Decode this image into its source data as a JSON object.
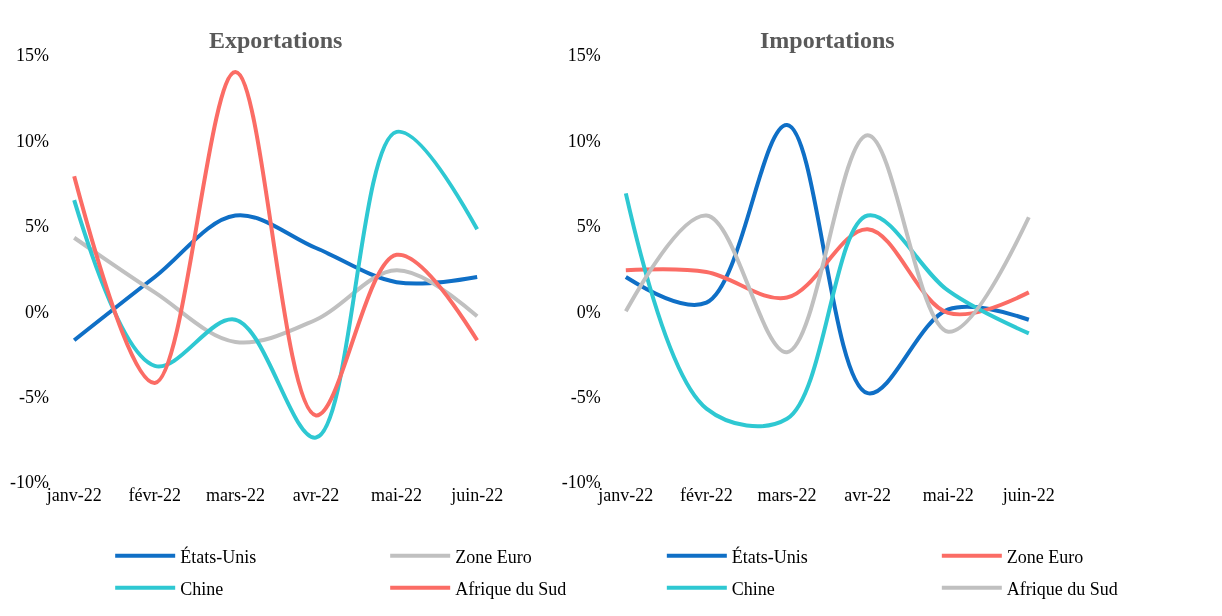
{
  "chart_data": [
    {
      "type": "line",
      "title": "Exportations",
      "categories": [
        "janv-22",
        "févr-22",
        "mars-22",
        "avr-22",
        "mai-22",
        "juin-22"
      ],
      "series": [
        {
          "name": "États-Unis",
          "color": "#0f6fc6",
          "values": [
            -1.7,
            2.0,
            5.6,
            3.7,
            1.7,
            2.0
          ]
        },
        {
          "name": "Zone Euro",
          "color": "#c0c0c0",
          "values": [
            4.3,
            1.1,
            -1.8,
            -0.5,
            2.4,
            -0.3
          ]
        },
        {
          "name": "Chine",
          "color": "#2ec8d2",
          "values": [
            6.5,
            -3.2,
            -0.5,
            -7.4,
            10.5,
            4.8
          ]
        },
        {
          "name": "Afrique du Sud",
          "color": "#fb6c65",
          "values": [
            7.9,
            -4.2,
            14.0,
            -6.1,
            3.3,
            -1.7
          ]
        }
      ],
      "ylim": [
        -10,
        15
      ],
      "yticks": [
        {
          "value": -10,
          "label": "-10%"
        },
        {
          "value": -5,
          "label": "-5%"
        },
        {
          "value": 0,
          "label": "0%"
        },
        {
          "value": 5,
          "label": "5%"
        },
        {
          "value": 10,
          "label": "10%"
        },
        {
          "value": 15,
          "label": "15%"
        }
      ],
      "legend": "bottom",
      "marker": "none",
      "line_style": "solid"
    },
    {
      "type": "line",
      "title": "Importations",
      "categories": [
        "janv-22",
        "févr-22",
        "mars-22",
        "avr-22",
        "mai-22",
        "juin-22"
      ],
      "series": [
        {
          "name": "États-Unis",
          "color": "#0f6fc6",
          "values": [
            2.0,
            0.5,
            10.9,
            -4.8,
            0.1,
            -0.5
          ]
        },
        {
          "name": "Zone Euro",
          "color": "#fb6c65",
          "values": [
            2.4,
            2.3,
            0.8,
            4.8,
            -0.1,
            1.1
          ]
        },
        {
          "name": "Chine",
          "color": "#2ec8d2",
          "values": [
            6.9,
            -5.7,
            -6.3,
            5.6,
            1.2,
            -1.3
          ]
        },
        {
          "name": "Afrique du Sud",
          "color": "#c0c0c0",
          "values": [
            0.0,
            5.6,
            -2.4,
            10.3,
            -1.2,
            5.5
          ]
        }
      ],
      "ylim": [
        -10,
        15
      ],
      "yticks": [
        {
          "value": -10,
          "label": "-10%"
        },
        {
          "value": -5,
          "label": "-5%"
        },
        {
          "value": 0,
          "label": "0%"
        },
        {
          "value": 5,
          "label": "5%"
        },
        {
          "value": 10,
          "label": "10%"
        },
        {
          "value": 15,
          "label": "15%"
        }
      ],
      "legend": "bottom",
      "marker": "none",
      "line_style": "solid"
    }
  ]
}
